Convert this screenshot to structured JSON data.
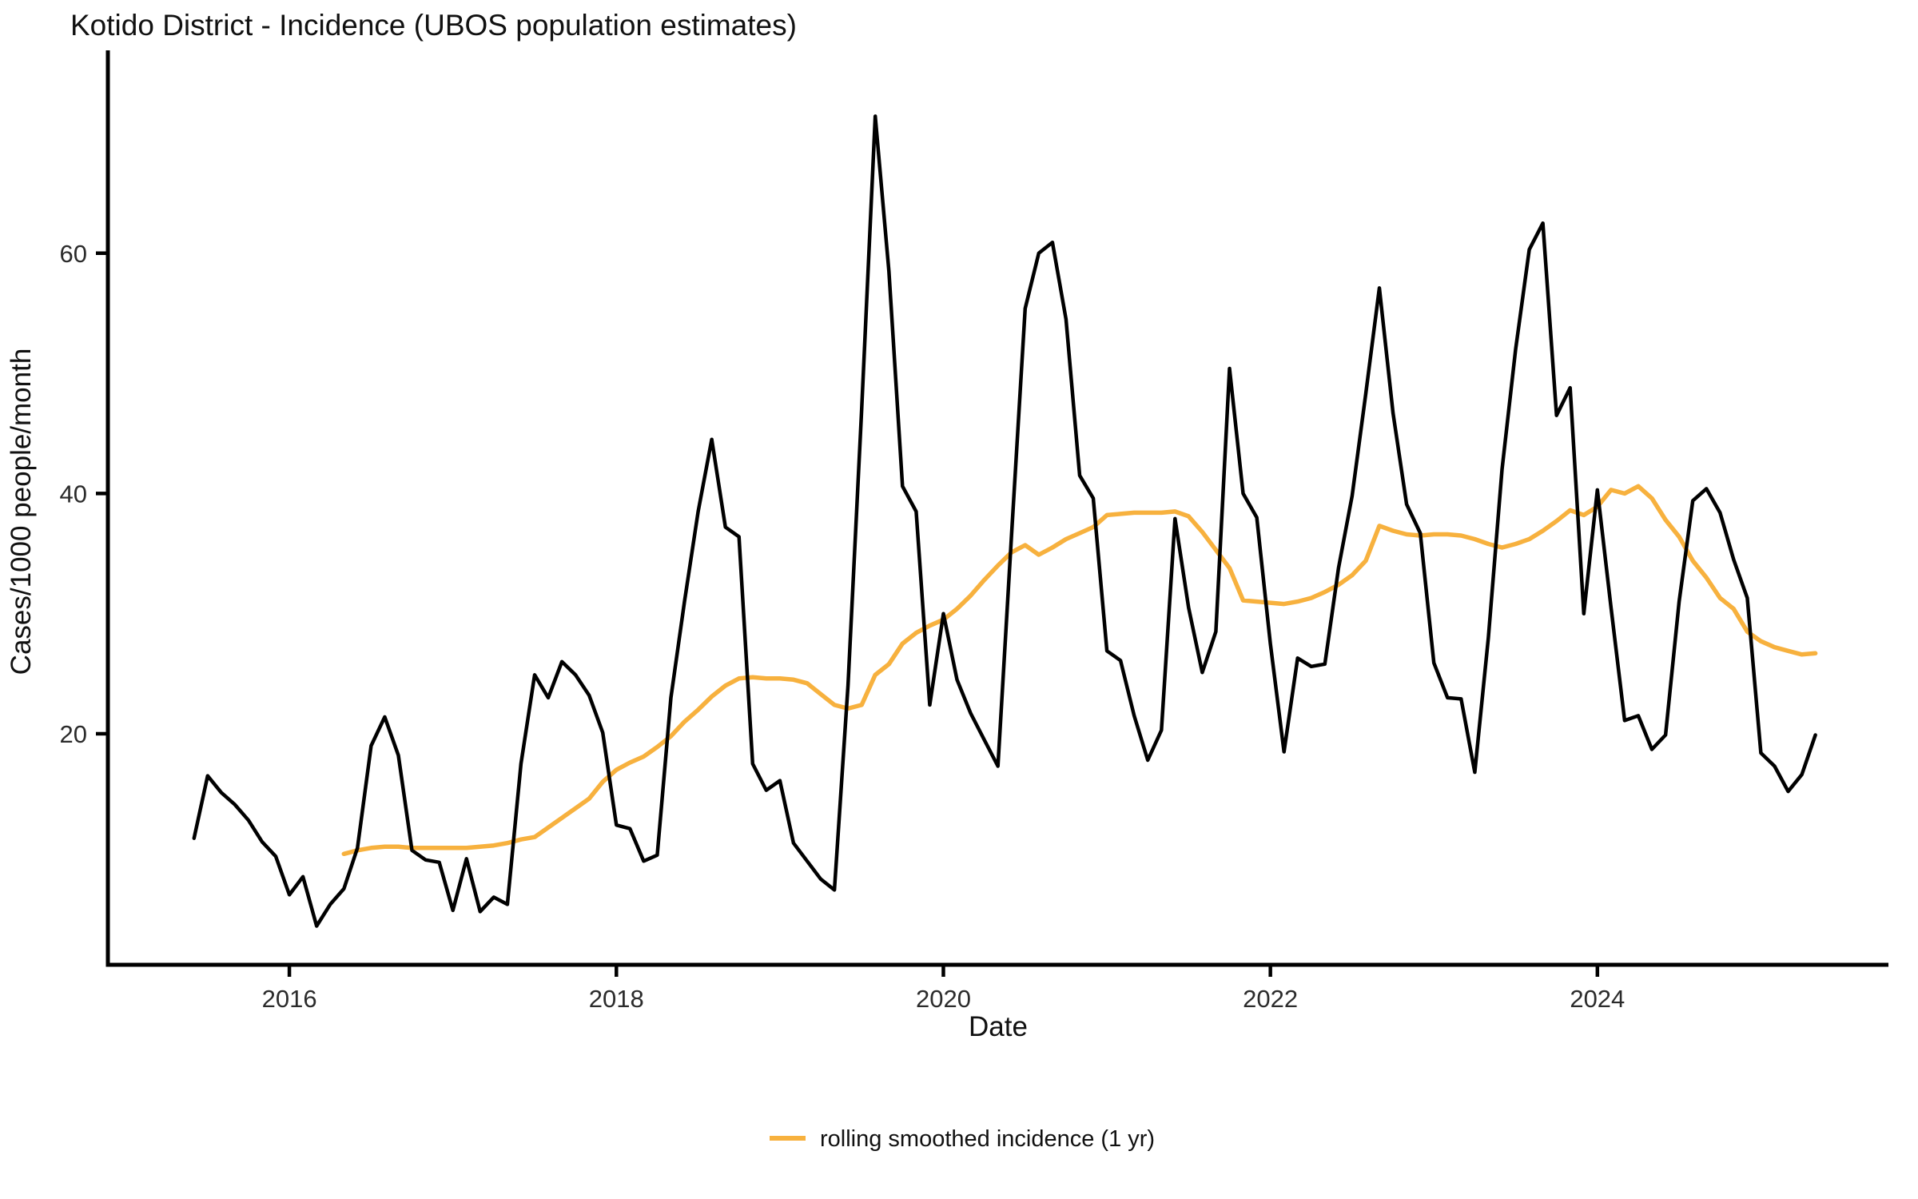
{
  "title": "Kotido District - Incidence (UBOS population estimates)",
  "x_axis_title": "Date",
  "y_axis_title": "Cases/1000 people/month",
  "legend": {
    "label": "rolling smoothed incidence (1 yr)"
  },
  "colors": {
    "incidence_line": "#000000",
    "smoothed_line": "#F7B13E",
    "axis": "#000000",
    "text": "#111111"
  },
  "chart_data": {
    "type": "line",
    "title": "Kotido District - Incidence (UBOS population estimates)",
    "xlabel": "Date",
    "ylabel": "Cases/1000 people/month",
    "grid": "off",
    "legend_position": "bottom-center",
    "x_tick_labels": [
      "2016",
      "2018",
      "2020",
      "2022",
      "2024"
    ],
    "x_tick_years": [
      2016,
      2018,
      2020,
      2022,
      2024
    ],
    "y_tick_labels": [
      "20",
      "40",
      "60"
    ],
    "y_tick_values": [
      20,
      40,
      60
    ],
    "x_range_years": [
      2014.89,
      2025.78
    ],
    "y_range": [
      0.77,
      76.75
    ],
    "series": [
      {
        "name": "monthly incidence",
        "color": "#000000",
        "stroke_width": 4.5,
        "start_year": 2015,
        "start_month": 6,
        "values": [
          11.3,
          16.5,
          15.1,
          14.1,
          12.8,
          11.0,
          9.8,
          6.6,
          8.1,
          4.0,
          5.8,
          7.1,
          10.5,
          19.0,
          21.4,
          18.2,
          10.3,
          9.5,
          9.3,
          5.3,
          9.6,
          5.2,
          6.4,
          5.8,
          17.5,
          24.9,
          23.0,
          26.0,
          24.9,
          23.2,
          20.1,
          12.4,
          12.1,
          9.4,
          9.9,
          23.0,
          31.0,
          38.5,
          44.5,
          37.2,
          36.4,
          17.5,
          15.3,
          16.1,
          10.9,
          9.4,
          7.9,
          7.0,
          24.0,
          47.0,
          71.4,
          58.5,
          40.6,
          38.5,
          22.4,
          30.0,
          24.5,
          21.7,
          19.5,
          17.3,
          36.5,
          55.4,
          60.0,
          60.9,
          54.5,
          41.5,
          39.6,
          26.9,
          26.1,
          21.5,
          17.8,
          20.3,
          37.9,
          30.5,
          25.1,
          28.5,
          50.4,
          40.0,
          38.0,
          27.5,
          18.5,
          26.3,
          25.6,
          25.8,
          33.8,
          39.8,
          48.3,
          57.1,
          46.7,
          39.1,
          36.7,
          25.9,
          23.0,
          22.9,
          16.8,
          28.0,
          42.0,
          52.0,
          60.3,
          62.5,
          46.5,
          48.8,
          30.0,
          40.3,
          30.5,
          21.1,
          21.5,
          18.7,
          19.9,
          31.0,
          39.4,
          40.4,
          38.4,
          34.5,
          31.3,
          18.4,
          17.3,
          15.2,
          16.6,
          19.9
        ]
      },
      {
        "name": "rolling smoothed incidence (1 yr)",
        "color": "#F7B13E",
        "stroke_width": 5.5,
        "start_year": 2016,
        "start_month": 5,
        "values": [
          10.0,
          10.3,
          10.5,
          10.6,
          10.6,
          10.5,
          10.5,
          10.5,
          10.5,
          10.5,
          10.6,
          10.7,
          10.9,
          11.2,
          11.4,
          12.2,
          13.0,
          13.8,
          14.6,
          16.0,
          17.0,
          17.6,
          18.1,
          18.9,
          19.8,
          21.0,
          22.0,
          23.1,
          24.0,
          24.6,
          24.7,
          24.6,
          24.6,
          24.5,
          24.2,
          23.3,
          22.4,
          22.1,
          22.4,
          24.9,
          25.8,
          27.5,
          28.4,
          29.0,
          29.5,
          30.4,
          31.5,
          32.8,
          34.0,
          35.1,
          35.7,
          34.9,
          35.5,
          36.2,
          36.7,
          37.2,
          38.2,
          38.3,
          38.4,
          38.4,
          38.4,
          38.5,
          38.1,
          36.8,
          35.3,
          33.8,
          31.1,
          31.0,
          30.9,
          30.8,
          31.0,
          31.3,
          31.8,
          32.4,
          33.2,
          34.4,
          37.3,
          36.9,
          36.6,
          36.5,
          36.6,
          36.6,
          36.5,
          36.2,
          35.8,
          35.5,
          35.8,
          36.2,
          36.9,
          37.7,
          38.6,
          38.2,
          38.9,
          40.3,
          40.0,
          40.6,
          39.6,
          37.8,
          36.4,
          34.4,
          33.0,
          31.3,
          30.4,
          28.5,
          27.7,
          27.2,
          26.9,
          26.6,
          26.7
        ]
      }
    ]
  }
}
